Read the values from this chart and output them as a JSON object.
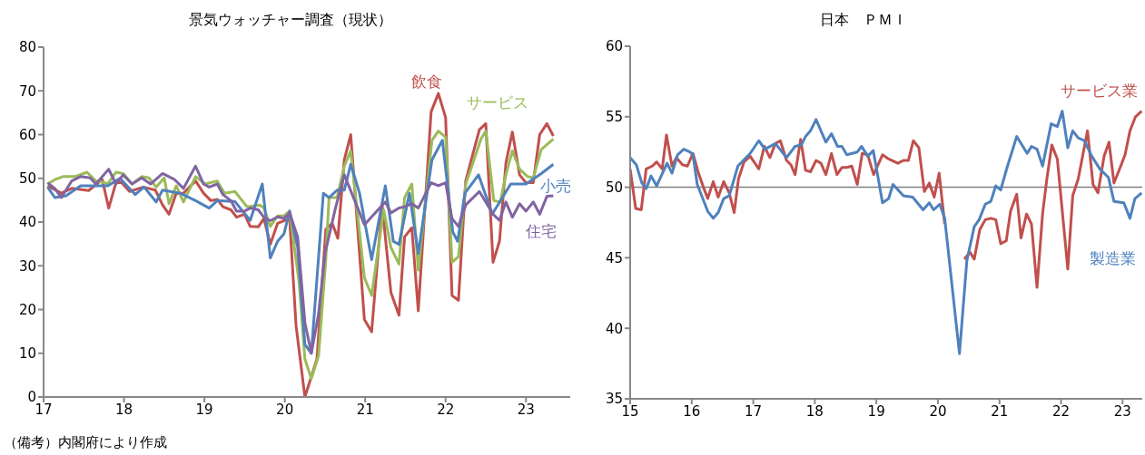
{
  "chart_data": [
    {
      "type": "line",
      "title": "景気ウォッチャー調査（現状）",
      "annotations": [
        "（備考）内閣府により作成"
      ],
      "xlim": [
        17,
        23.55
      ],
      "xticks": [
        17,
        18,
        19,
        20,
        21,
        22,
        23
      ],
      "ylim": [
        0,
        80
      ],
      "yticks": [
        0,
        10,
        20,
        30,
        40,
        50,
        60,
        70,
        80
      ],
      "series": [
        {
          "name": "飲食",
          "color": "#c0504d",
          "x": [
            17.05,
            17.22,
            17.35,
            17.56,
            17.73,
            17.81,
            17.9,
            17.97,
            18.07,
            18.24,
            18.39,
            18.48,
            18.56,
            18.65,
            18.74,
            18.89,
            18.99,
            19.08,
            19.16,
            19.23,
            19.33,
            19.4,
            19.5,
            19.57,
            19.67,
            19.74,
            19.82,
            19.91,
            20.06,
            20.14,
            20.25,
            20.4,
            20.51,
            20.59,
            20.66,
            20.74,
            20.82,
            20.99,
            21.08,
            21.21,
            21.32,
            21.42,
            21.49,
            21.58,
            21.66,
            21.82,
            21.91,
            22.0,
            22.08,
            22.16,
            22.25,
            22.42,
            22.5,
            22.59,
            22.67,
            22.75,
            22.83,
            22.92,
            23.0,
            23.09,
            23.17,
            23.26,
            23.34
          ],
          "values": [
            48.3,
            46.6,
            47.7,
            47.2,
            49.7,
            43.2,
            49,
            49,
            47,
            48,
            47.3,
            43.9,
            41.8,
            46.6,
            46.6,
            49.4,
            46.6,
            44.9,
            45.2,
            43.5,
            42.8,
            41.1,
            41.8,
            39,
            38.9,
            40.8,
            34.9,
            39.7,
            40.8,
            16.3,
            0,
            8.7,
            38.3,
            39.7,
            36.3,
            54.2,
            60,
            17.7,
            14.9,
            43.9,
            23.9,
            18.7,
            36.6,
            38.7,
            19.7,
            65.2,
            69.4,
            63.9,
            23.2,
            22.1,
            49.4,
            61.1,
            62.5,
            30.8,
            35.6,
            53.5,
            60.6,
            50.8,
            49,
            49,
            60,
            62.5,
            59.7
          ]
        },
        {
          "name": "サービス",
          "color": "#9bbb59",
          "x": [
            17.05,
            17.14,
            17.24,
            17.39,
            17.54,
            17.65,
            17.8,
            17.9,
            17.99,
            18.1,
            18.22,
            18.31,
            18.4,
            18.5,
            18.56,
            18.65,
            18.74,
            18.89,
            19.01,
            19.16,
            19.25,
            19.38,
            19.53,
            19.69,
            19.74,
            19.82,
            19.91,
            19.99,
            20.06,
            20.18,
            20.25,
            20.33,
            20.42,
            20.51,
            20.55,
            20.65,
            20.74,
            20.82,
            20.99,
            21.08,
            21.23,
            21.32,
            21.42,
            21.49,
            21.58,
            21.66,
            21.83,
            21.91,
            22.0,
            22.08,
            22.16,
            22.25,
            22.34,
            22.44,
            22.5,
            22.6,
            22.68,
            22.75,
            22.83,
            22.92,
            23.02,
            23.09,
            23.19,
            23.34
          ],
          "values": [
            48.7,
            49.7,
            50.4,
            50.4,
            51.4,
            49.4,
            48.8,
            51.4,
            51.1,
            48.7,
            50.4,
            50.1,
            48,
            50.1,
            44.2,
            48.3,
            44.6,
            50.4,
            48.7,
            49.4,
            46.6,
            47,
            43.5,
            43.9,
            43.2,
            39,
            41.4,
            41.4,
            42.5,
            25.9,
            8.7,
            4.2,
            9.4,
            31.4,
            45.6,
            45.6,
            52.8,
            56.3,
            27.3,
            23.2,
            42.8,
            34.2,
            30.4,
            45.6,
            48.7,
            29,
            58.7,
            60.8,
            59.4,
            30.8,
            32.1,
            48.7,
            53.5,
            59,
            60.8,
            44.9,
            44.6,
            50.8,
            56.3,
            52.1,
            50.4,
            50.1,
            56.6,
            59
          ]
        },
        {
          "name": "小売",
          "color": "#4f81bd",
          "x": [
            17.05,
            17.14,
            17.28,
            17.46,
            17.65,
            17.8,
            17.95,
            18.14,
            18.25,
            18.4,
            18.48,
            18.7,
            18.89,
            19.06,
            19.16,
            19.38,
            19.57,
            19.72,
            19.82,
            19.91,
            19.99,
            20.06,
            20.16,
            20.25,
            20.33,
            20.48,
            20.55,
            20.65,
            20.74,
            20.82,
            20.93,
            21.08,
            21.25,
            21.35,
            21.42,
            21.55,
            21.66,
            21.83,
            21.96,
            22.09,
            22.15,
            22.24,
            22.41,
            22.58,
            22.81,
            23.0,
            23.19,
            23.34
          ],
          "values": [
            48,
            45.6,
            46,
            48.3,
            48.3,
            48.3,
            50,
            46.3,
            48,
            44.6,
            47.3,
            46.6,
            44.9,
            43.2,
            44.9,
            44.7,
            40.4,
            48.7,
            31.8,
            35.6,
            37.3,
            42.5,
            34.2,
            12,
            10,
            46.6,
            45.6,
            47.3,
            47.3,
            53.2,
            46.6,
            31.4,
            48.3,
            35.6,
            34.9,
            46.6,
            32.8,
            54.2,
            58.7,
            37.7,
            35.6,
            46.6,
            50.8,
            41.8,
            48.7,
            48.7,
            51.1,
            53.2
          ]
        },
        {
          "name": "住宅",
          "color": "#8064a2",
          "x": [
            17.05,
            17.14,
            17.22,
            17.35,
            17.46,
            17.58,
            17.65,
            17.81,
            17.9,
            17.99,
            18.1,
            18.22,
            18.33,
            18.48,
            18.63,
            18.74,
            18.89,
            18.99,
            19.06,
            19.16,
            19.23,
            19.33,
            19.4,
            19.5,
            19.57,
            19.67,
            19.74,
            19.82,
            19.91,
            19.99,
            20.06,
            20.16,
            20.25,
            20.33,
            20.42,
            20.5,
            20.63,
            20.74,
            20.99,
            21.25,
            21.32,
            21.42,
            21.49,
            21.58,
            21.66,
            21.82,
            21.91,
            22.0,
            22.08,
            22.16,
            22.25,
            22.42,
            22.59,
            22.67,
            22.75,
            22.83,
            22.92,
            23.0,
            23.09,
            23.17,
            23.26,
            23.34
          ],
          "values": [
            49,
            47.7,
            45.6,
            49.4,
            50.4,
            50.1,
            48.7,
            52.1,
            48.7,
            50.8,
            48.7,
            50.1,
            48.7,
            51.1,
            49.7,
            47.7,
            52.8,
            48.7,
            48,
            48.7,
            46.3,
            44.9,
            42.5,
            42.5,
            43.2,
            42.8,
            41.1,
            40.3,
            41.2,
            40.8,
            42.1,
            36.6,
            17,
            10,
            19,
            32.8,
            43.2,
            50.8,
            39.4,
            44.6,
            42.1,
            43.2,
            43.5,
            44.2,
            43.2,
            49,
            48.3,
            49,
            40.8,
            39,
            43.9,
            47,
            41.8,
            40.4,
            44.6,
            41.1,
            44.2,
            42.5,
            44.6,
            41.8,
            45.9,
            46
          ]
        }
      ]
    },
    {
      "type": "line",
      "title": "日本　ＰＭＩ",
      "xlim": [
        15,
        23.32
      ],
      "xticks": [
        15,
        16,
        17,
        18,
        19,
        20,
        21,
        22,
        23
      ],
      "ylim": [
        35,
        60
      ],
      "yticks": [
        35,
        40,
        45,
        50,
        55,
        60
      ],
      "ref_lines": [
        {
          "axis": "y",
          "value": 50,
          "color": "#808080"
        }
      ],
      "series": [
        {
          "name": "サービス業",
          "color": "#c0504d",
          "x": [
            15.0,
            15.09,
            15.18,
            15.26,
            15.36,
            15.43,
            15.52,
            15.59,
            15.68,
            15.75,
            15.85,
            15.93,
            16.02,
            16.11,
            16.19,
            16.26,
            16.35,
            16.43,
            16.52,
            16.61,
            16.69,
            16.76,
            16.85,
            16.95,
            17.09,
            17.18,
            17.27,
            17.36,
            17.44,
            17.54,
            17.61,
            17.68,
            17.77,
            17.85,
            17.93,
            18.02,
            18.1,
            18.18,
            18.27,
            18.36,
            18.44,
            18.52,
            18.6,
            18.69,
            18.77,
            18.86,
            18.955,
            19.1,
            19.2,
            19.35,
            19.44,
            19.52,
            19.6,
            19.69,
            19.78,
            19.86,
            19.94,
            20.02,
            20.11,
            20.28,
            20.43,
            20.52,
            20.59,
            20.68,
            20.77,
            20.86,
            20.94,
            21.02,
            21.11,
            21.18,
            21.28,
            21.35,
            21.44,
            21.52,
            21.61,
            21.7,
            21.77,
            21.85,
            21.94,
            22.11,
            22.19,
            22.28,
            22.43,
            22.52,
            22.6,
            22.7,
            22.78,
            22.86,
            22.97,
            23.04,
            23.12,
            23.21,
            23.31
          ],
          "values": [
            51.3,
            48.5,
            48.4,
            51.3,
            51.5,
            51.8,
            51.3,
            53.7,
            51.5,
            52.1,
            51.6,
            51.5,
            52.4,
            51,
            50,
            49.2,
            50.4,
            49.3,
            50.4,
            49.6,
            48.2,
            50.6,
            51.8,
            52.2,
            51.3,
            52.9,
            52.1,
            53.1,
            53.3,
            51.9,
            51.6,
            50.9,
            53.4,
            51.2,
            51.1,
            51.9,
            51.7,
            50.9,
            52.4,
            50.9,
            51.4,
            51.4,
            51.5,
            50.2,
            52.4,
            52.3,
            50.9,
            52.3,
            52,
            51.7,
            51.9,
            51.9,
            53.3,
            52.8,
            49.7,
            50.3,
            49.3,
            51,
            47.4,
            null,
            44.9,
            45.4,
            44.9,
            47,
            47.7,
            47.8,
            47.7,
            46,
            46.2,
            48.3,
            49.5,
            46.4,
            48.1,
            47.4,
            42.9,
            48.1,
            50.6,
            53,
            52,
            44.2,
            49.4,
            50.6,
            54,
            50.2,
            49.6,
            52.2,
            53.2,
            50.3,
            51.5,
            52.3,
            54,
            55,
            55.4
          ]
        },
        {
          "name": "製造業",
          "color": "#4f81bd",
          "x": [
            15.0,
            15.1,
            15.19,
            15.26,
            15.34,
            15.43,
            15.6,
            15.68,
            15.77,
            15.87,
            15.97,
            16.02,
            16.09,
            16.26,
            16.35,
            16.43,
            16.52,
            16.61,
            16.75,
            16.95,
            17.09,
            17.19,
            17.36,
            17.54,
            17.68,
            17.78,
            17.85,
            17.93,
            18.02,
            18.18,
            18.27,
            18.37,
            18.44,
            18.52,
            18.69,
            18.76,
            18.86,
            18.95,
            19.1,
            19.2,
            19.27,
            19.44,
            19.59,
            19.76,
            19.86,
            19.93,
            20.03,
            20.11,
            20.35,
            20.47,
            20.59,
            20.67,
            20.77,
            20.86,
            20.94,
            21.02,
            21.13,
            21.28,
            21.45,
            21.52,
            21.61,
            21.7,
            21.84,
            21.94,
            22.02,
            22.11,
            22.19,
            22.28,
            22.38,
            22.5,
            22.63,
            22.77,
            22.86,
            23.02,
            23.12,
            23.2,
            23.31
          ],
          "values": [
            52.1,
            51.6,
            50.3,
            49.9,
            50.8,
            50.1,
            51.7,
            51,
            52.3,
            52.7,
            52.5,
            52.3,
            50.2,
            48.3,
            47.8,
            48.2,
            49.2,
            49.4,
            51.5,
            52.4,
            53.3,
            52.7,
            53.1,
            52.1,
            52.9,
            53,
            53.6,
            54,
            54.8,
            53.2,
            53.8,
            52.9,
            52.9,
            52.3,
            52.5,
            52.9,
            52.2,
            52.6,
            48.9,
            49.2,
            50.2,
            49.4,
            49.3,
            48.4,
            48.9,
            48.4,
            48.8,
            47.8,
            38.2,
            44.8,
            47.2,
            47.7,
            48.8,
            49,
            50.1,
            49.8,
            51.5,
            53.6,
            52.4,
            52.9,
            52.7,
            51.5,
            54.5,
            54.3,
            55.4,
            52.8,
            54,
            53.5,
            53.3,
            52.2,
            51.3,
            50.7,
            49,
            48.9,
            47.8,
            49.2,
            49.6
          ]
        }
      ]
    }
  ]
}
